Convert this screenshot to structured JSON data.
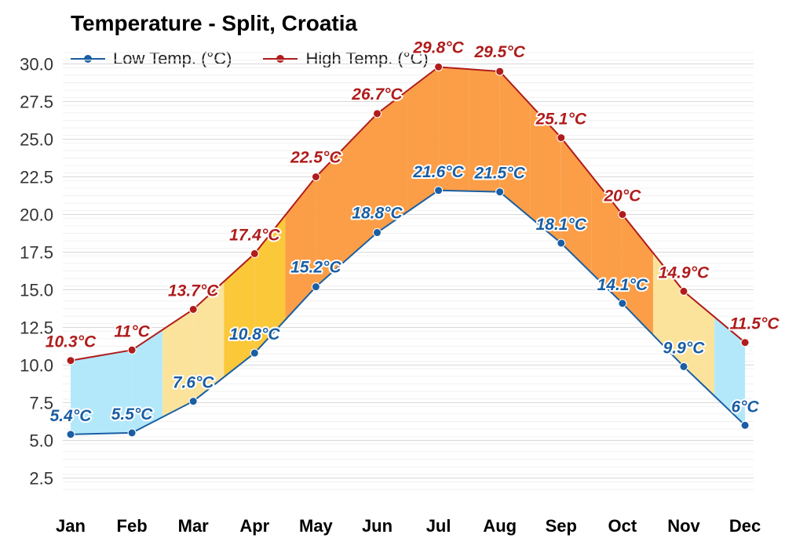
{
  "chart_data": {
    "type": "line",
    "title": "Temperature - Split, Croatia",
    "categories": [
      "Jan",
      "Feb",
      "Mar",
      "Apr",
      "May",
      "Jun",
      "Jul",
      "Aug",
      "Sep",
      "Oct",
      "Nov",
      "Dec"
    ],
    "series": [
      {
        "name": "Low Temp. (°C)",
        "color": "#1a5ea3",
        "values": [
          5.4,
          5.5,
          7.6,
          10.8,
          15.2,
          18.8,
          21.6,
          21.5,
          18.1,
          14.1,
          9.9,
          6
        ],
        "labels": [
          "5.4°C",
          "5.5°C",
          "7.6°C",
          "10.8°C",
          "15.2°C",
          "18.8°C",
          "21.6°C",
          "21.5°C",
          "18.1°C",
          "14.1°C",
          "9.9°C",
          "6°C"
        ]
      },
      {
        "name": "High Temp. (°C)",
        "color": "#b01c1c",
        "values": [
          10.3,
          11,
          13.7,
          17.4,
          22.5,
          26.7,
          29.8,
          29.5,
          25.1,
          20,
          14.9,
          11.5
        ],
        "labels": [
          "10.3°C",
          "11°C",
          "13.7°C",
          "17.4°C",
          "22.5°C",
          "26.7°C",
          "29.8°C",
          "29.5°C",
          "25.1°C",
          "20°C",
          "14.9°C",
          "11.5°C"
        ]
      }
    ],
    "yticks": [
      "2.5",
      "5.0",
      "7.5",
      "10.0",
      "12.5",
      "15.0",
      "17.5",
      "20.0",
      "22.5",
      "25.0",
      "27.5",
      "30.0"
    ],
    "ylim": [
      1.25,
      31.25
    ],
    "grid": true,
    "legend_position": "top-left",
    "fill_colors": [
      "#b3e8fb",
      "#fbe39b",
      "#fbc83a",
      "#fb9e47"
    ]
  }
}
